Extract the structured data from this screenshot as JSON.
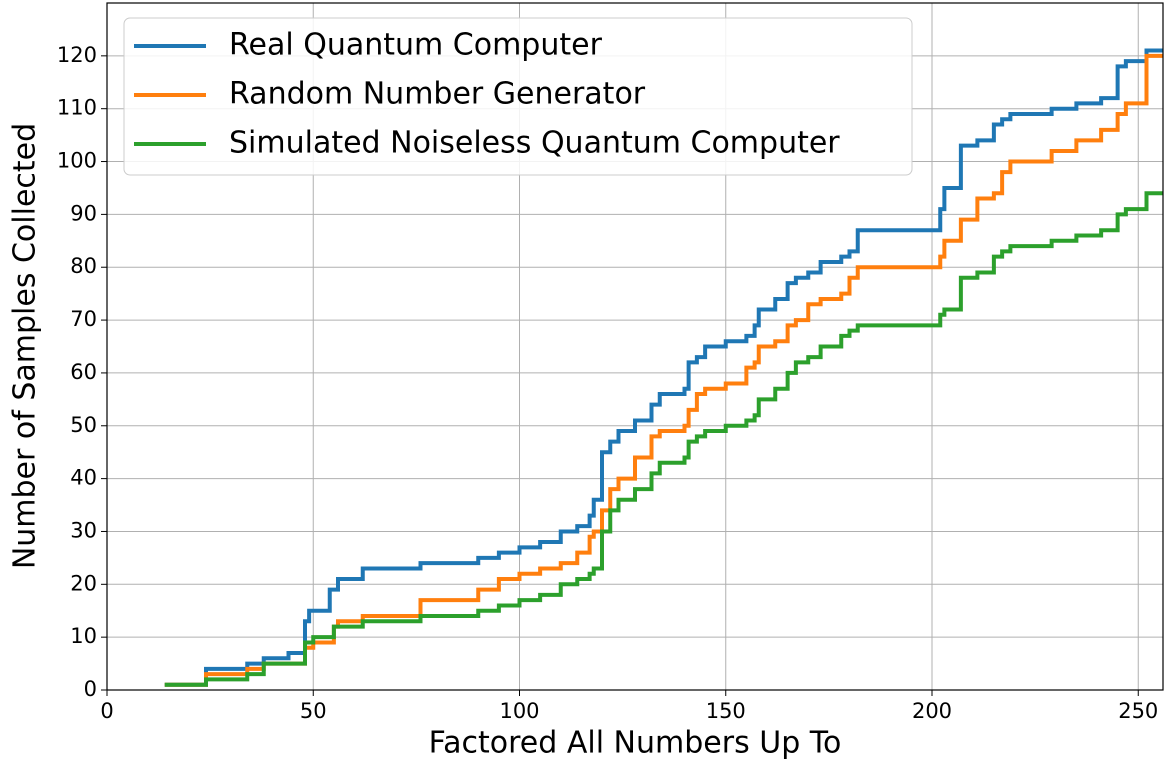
{
  "chart_data": {
    "type": "line",
    "step": "post",
    "xlabel": "Factored All Numbers Up To",
    "ylabel": "Number of Samples Collected",
    "x": [
      14,
      24,
      34,
      38,
      44,
      48,
      49,
      50,
      54,
      55,
      56,
      62,
      76,
      90,
      95,
      100,
      105,
      110,
      114,
      117,
      118,
      120,
      122,
      124,
      128,
      132,
      134,
      140,
      141,
      143,
      145,
      150,
      155,
      157,
      158,
      162,
      165,
      167,
      170,
      173,
      178,
      180,
      182,
      202,
      203,
      207,
      211,
      215,
      217,
      219,
      229,
      235,
      241,
      245,
      247,
      250,
      252,
      256
    ],
    "series": [
      {
        "name": "Real Quantum Computer",
        "color": "#1f77b4",
        "values": [
          1,
          4,
          5,
          6,
          7,
          13,
          15,
          15,
          19,
          19,
          21,
          23,
          24,
          25,
          26,
          27,
          28,
          30,
          31,
          33,
          36,
          45,
          47,
          49,
          51,
          54,
          56,
          57,
          62,
          63,
          65,
          66,
          67,
          69,
          72,
          74,
          77,
          78,
          79,
          81,
          82,
          83,
          87,
          91,
          95,
          103,
          104,
          107,
          108,
          109,
          110,
          111,
          112,
          118,
          119,
          119,
          121,
          121
        ]
      },
      {
        "name": "Random Number Generator",
        "color": "#ff7f0e",
        "values": [
          1,
          3,
          4,
          5,
          5,
          8,
          8,
          9,
          9,
          12,
          13,
          14,
          17,
          19,
          21,
          22,
          23,
          24,
          26,
          29,
          30,
          34,
          38,
          40,
          44,
          48,
          49,
          50,
          53,
          56,
          57,
          58,
          61,
          62,
          65,
          66,
          69,
          70,
          73,
          74,
          75,
          78,
          80,
          82,
          85,
          89,
          93,
          94,
          98,
          100,
          102,
          104,
          106,
          109,
          111,
          111,
          120,
          120
        ]
      },
      {
        "name": "Simulated Noiseless Quantum Computer",
        "color": "#2ca02c",
        "values": [
          1,
          2,
          3,
          5,
          5,
          9,
          9,
          10,
          10,
          12,
          12,
          13,
          14,
          15,
          16,
          17,
          18,
          20,
          21,
          22,
          23,
          30,
          34,
          36,
          38,
          41,
          43,
          44,
          47,
          48,
          49,
          50,
          51,
          52,
          55,
          57,
          60,
          62,
          63,
          65,
          67,
          68,
          69,
          71,
          72,
          78,
          79,
          82,
          83,
          84,
          85,
          86,
          87,
          90,
          91,
          91,
          94,
          94
        ]
      }
    ],
    "xlim": [
      0,
      256
    ],
    "ylim": [
      0,
      130
    ],
    "xticks": [
      0,
      50,
      100,
      150,
      200,
      250
    ],
    "yticks": [
      0,
      10,
      20,
      30,
      40,
      50,
      60,
      70,
      80,
      90,
      100,
      110,
      120
    ],
    "grid": true,
    "legend": "upper-left"
  }
}
